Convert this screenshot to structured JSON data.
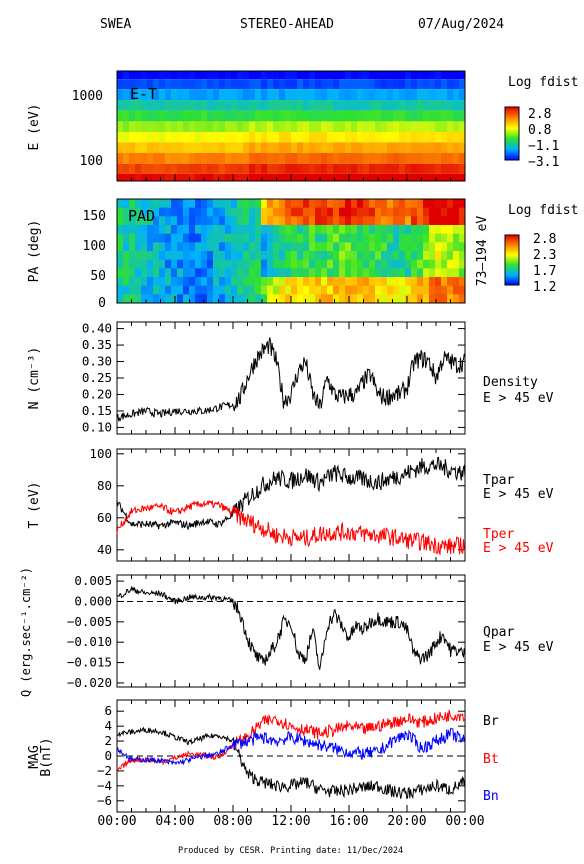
{
  "header": {
    "instrument": "SWEA",
    "spacecraft": "STEREO-AHEAD",
    "date": "07/Aug/2024"
  },
  "footer": {
    "credit": "Produced by CESR.  Printing date: 11/Dec/2024"
  },
  "x_ticks": [
    "00:00",
    "04:00",
    "08:00",
    "12:00",
    "16:00",
    "20:00",
    "00:00"
  ],
  "colors": {
    "tpar": "#000000",
    "tper": "#ff0000",
    "br": "#000000",
    "bt": "#ff0000",
    "bn": "#0000ff"
  },
  "chart_data": [
    {
      "type": "heatmap",
      "id": "et",
      "ylabel": "E (eV)",
      "yscale": "log",
      "ylim": [
        50,
        2300
      ],
      "yticks": [
        "1000",
        "100"
      ],
      "inner_label": "E-T",
      "colorbar": {
        "title": "Log fdist",
        "ticks": [
          "2.8",
          "0.8",
          "−1.1",
          "−3.1"
        ],
        "range": [
          -3.1,
          2.8
        ]
      },
      "energy_levels_log_fdist": [
        {
          "e": 2000,
          "v": -3.1
        },
        {
          "e": 1500,
          "v": -2.6
        },
        {
          "e": 1000,
          "v": -2.0
        },
        {
          "e": 700,
          "v": -1.4
        },
        {
          "e": 480,
          "v": -0.8
        },
        {
          "e": 330,
          "v": -0.2
        },
        {
          "e": 230,
          "v": 0.4
        },
        {
          "e": 160,
          "v": 1.0
        },
        {
          "e": 110,
          "v": 1.6
        },
        {
          "e": 75,
          "v": 2.2
        },
        {
          "e": 55,
          "v": 2.7
        }
      ]
    },
    {
      "type": "heatmap",
      "id": "pad",
      "ylabel": "PA (deg)",
      "ylim": [
        0,
        180
      ],
      "yticks": [
        "150",
        "100",
        "50",
        "0"
      ],
      "right_label": "73–194 eV",
      "inner_label": "PAD",
      "colorbar": {
        "title": "Log fdist",
        "ticks": [
          "2.8",
          "2.3",
          "1.7",
          "1.2"
        ],
        "range": [
          1.2,
          2.8
        ]
      },
      "time_profile": [
        {
          "t": 0,
          "v": 1.7
        },
        {
          "t": 2,
          "v": 1.6
        },
        {
          "t": 4,
          "v": 1.5
        },
        {
          "t": 6,
          "v": 1.45
        },
        {
          "t": 8,
          "v": 1.6
        },
        {
          "t": 10,
          "v": 1.75
        },
        {
          "t": 11,
          "v": 1.95
        },
        {
          "t": 12,
          "v": 2.1
        },
        {
          "t": 14,
          "v": 2.1
        },
        {
          "t": 16,
          "v": 2.2
        },
        {
          "t": 18,
          "v": 2.1
        },
        {
          "t": 20,
          "v": 2.0
        },
        {
          "t": 22,
          "v": 2.4
        },
        {
          "t": 24,
          "v": 2.3
        }
      ]
    },
    {
      "type": "line",
      "id": "density",
      "ylabel": "N (cm⁻³)",
      "ylim": [
        0.08,
        0.42
      ],
      "yticks": [
        "0.40",
        "0.35",
        "0.30",
        "0.25",
        "0.20",
        "0.15",
        "0.10"
      ],
      "series": [
        {
          "name": "Density",
          "sublabel": "E > 45 eV",
          "x": [
            0,
            1,
            2,
            3,
            4,
            5,
            6,
            7,
            8,
            8.5,
            9,
            9.5,
            10,
            10.5,
            11,
            11.5,
            12,
            12.5,
            13,
            13.5,
            14,
            14.5,
            15,
            15.5,
            16,
            16.5,
            17,
            17.5,
            18,
            18.5,
            19,
            19.5,
            20,
            20.5,
            21,
            21.5,
            22,
            22.5,
            23,
            23.5,
            24
          ],
          "y": [
            0.13,
            0.14,
            0.15,
            0.14,
            0.15,
            0.15,
            0.15,
            0.16,
            0.17,
            0.19,
            0.25,
            0.3,
            0.33,
            0.35,
            0.3,
            0.18,
            0.2,
            0.27,
            0.3,
            0.2,
            0.16,
            0.25,
            0.2,
            0.19,
            0.2,
            0.2,
            0.24,
            0.26,
            0.2,
            0.19,
            0.2,
            0.2,
            0.22,
            0.3,
            0.31,
            0.3,
            0.25,
            0.31,
            0.3,
            0.29,
            0.3
          ]
        }
      ]
    },
    {
      "type": "line",
      "id": "temperature",
      "ylabel": "T (eV)",
      "ylim": [
        33,
        103
      ],
      "yticks": [
        "100",
        "80",
        "60",
        "40"
      ],
      "series": [
        {
          "name": "Tpar",
          "sublabel": "E > 45 eV",
          "x": [
            0,
            1,
            2,
            3,
            4,
            5,
            6,
            7,
            8,
            9,
            10,
            11,
            12,
            13,
            14,
            15,
            16,
            17,
            18,
            19,
            20,
            21,
            22,
            23,
            24
          ],
          "y": [
            70,
            56,
            56,
            55,
            57,
            55,
            58,
            56,
            62,
            72,
            80,
            85,
            83,
            87,
            82,
            88,
            85,
            84,
            82,
            85,
            88,
            92,
            93,
            90,
            88
          ]
        },
        {
          "name": "Tper",
          "sublabel": "E > 45 eV",
          "x": [
            0,
            1,
            2,
            3,
            4,
            5,
            6,
            7,
            8,
            9,
            10,
            11,
            12,
            13,
            14,
            15,
            16,
            17,
            18,
            19,
            20,
            21,
            22,
            23,
            24
          ],
          "y": [
            52,
            64,
            66,
            67,
            63,
            67,
            69,
            68,
            63,
            58,
            54,
            49,
            48,
            47,
            50,
            51,
            51,
            50,
            49,
            48,
            46,
            45,
            43,
            42,
            43
          ]
        }
      ]
    },
    {
      "type": "line",
      "id": "heatflux",
      "ylabel": "Q (erg.sec⁻¹.cm⁻²)",
      "ylim": [
        -0.021,
        0.0065
      ],
      "yticks": [
        "0.005",
        "0.000",
        "−0.005",
        "−0.010",
        "−0.015",
        "−0.020"
      ],
      "reference_line": 0,
      "series": [
        {
          "name": "Qpar",
          "sublabel": "E > 45 eV",
          "x": [
            0,
            1,
            2,
            3,
            4,
            5,
            6,
            7,
            8,
            8.5,
            9,
            9.5,
            10,
            10.5,
            11,
            11.5,
            12,
            12.5,
            13,
            13.5,
            14,
            14.5,
            15,
            15.5,
            16,
            16.5,
            17,
            17.5,
            18,
            18.5,
            19,
            19.5,
            20,
            20.5,
            21,
            21.5,
            22,
            22.5,
            23,
            23.5,
            24
          ],
          "y": [
            0.001,
            0.003,
            0.002,
            0.002,
            0.0,
            0.001,
            0.001,
            0.001,
            0.0,
            -0.003,
            -0.009,
            -0.013,
            -0.015,
            -0.013,
            -0.01,
            -0.005,
            -0.005,
            -0.013,
            -0.014,
            -0.007,
            -0.017,
            -0.006,
            -0.003,
            -0.006,
            -0.009,
            -0.006,
            -0.007,
            -0.005,
            -0.004,
            -0.005,
            -0.005,
            -0.005,
            -0.007,
            -0.013,
            -0.014,
            -0.013,
            -0.01,
            -0.008,
            -0.012,
            -0.012,
            -0.013
          ]
        }
      ]
    },
    {
      "type": "line",
      "id": "mag",
      "ylabel": "MAG B(nT)",
      "ylim": [
        -7.5,
        7.5
      ],
      "yticks": [
        "6",
        "4",
        "2",
        "0",
        "−2",
        "−4",
        "−6"
      ],
      "reference_line": 0,
      "series": [
        {
          "name": "Br",
          "x": [
            0,
            1,
            2,
            3,
            4,
            5,
            6,
            7,
            8,
            9,
            10,
            11,
            12,
            13,
            14,
            15,
            16,
            17,
            18,
            19,
            20,
            21,
            22,
            23,
            24
          ],
          "y": [
            3,
            3.2,
            3.5,
            3.3,
            2.5,
            1.8,
            2.5,
            2.8,
            2.0,
            -2.5,
            -3.5,
            -4.0,
            -4.0,
            -3.5,
            -4.5,
            -4.8,
            -4.5,
            -4.2,
            -4.0,
            -4.8,
            -5.0,
            -4.5,
            -4.0,
            -4.5,
            -3.5
          ]
        },
        {
          "name": "Bt",
          "x": [
            0,
            1,
            2,
            3,
            4,
            5,
            6,
            7,
            8,
            9,
            10,
            11,
            12,
            13,
            14,
            15,
            16,
            17,
            18,
            19,
            20,
            21,
            22,
            23,
            24
          ],
          "y": [
            -2.0,
            -0.5,
            -0.5,
            -0.8,
            -0.3,
            0.3,
            0.1,
            -0.2,
            1.5,
            2.5,
            4.5,
            5.0,
            4.0,
            3.5,
            3.0,
            3.5,
            4.0,
            3.5,
            4.0,
            4.5,
            5.0,
            4.5,
            5.0,
            5.5,
            5.5
          ]
        },
        {
          "name": "Bn",
          "x": [
            0,
            1,
            2,
            3,
            4,
            5,
            6,
            7,
            8,
            9,
            10,
            11,
            12,
            13,
            14,
            15,
            16,
            17,
            18,
            19,
            20,
            21,
            22,
            23,
            24
          ],
          "y": [
            1.0,
            -0.5,
            -0.5,
            -0.6,
            -1.0,
            -0.5,
            0.0,
            0.3,
            1.5,
            2.0,
            2.5,
            2.0,
            2.5,
            2.0,
            1.5,
            1.0,
            0.5,
            0.3,
            0.5,
            2.0,
            3.0,
            1.0,
            2.0,
            3.0,
            2.0
          ]
        }
      ]
    }
  ]
}
